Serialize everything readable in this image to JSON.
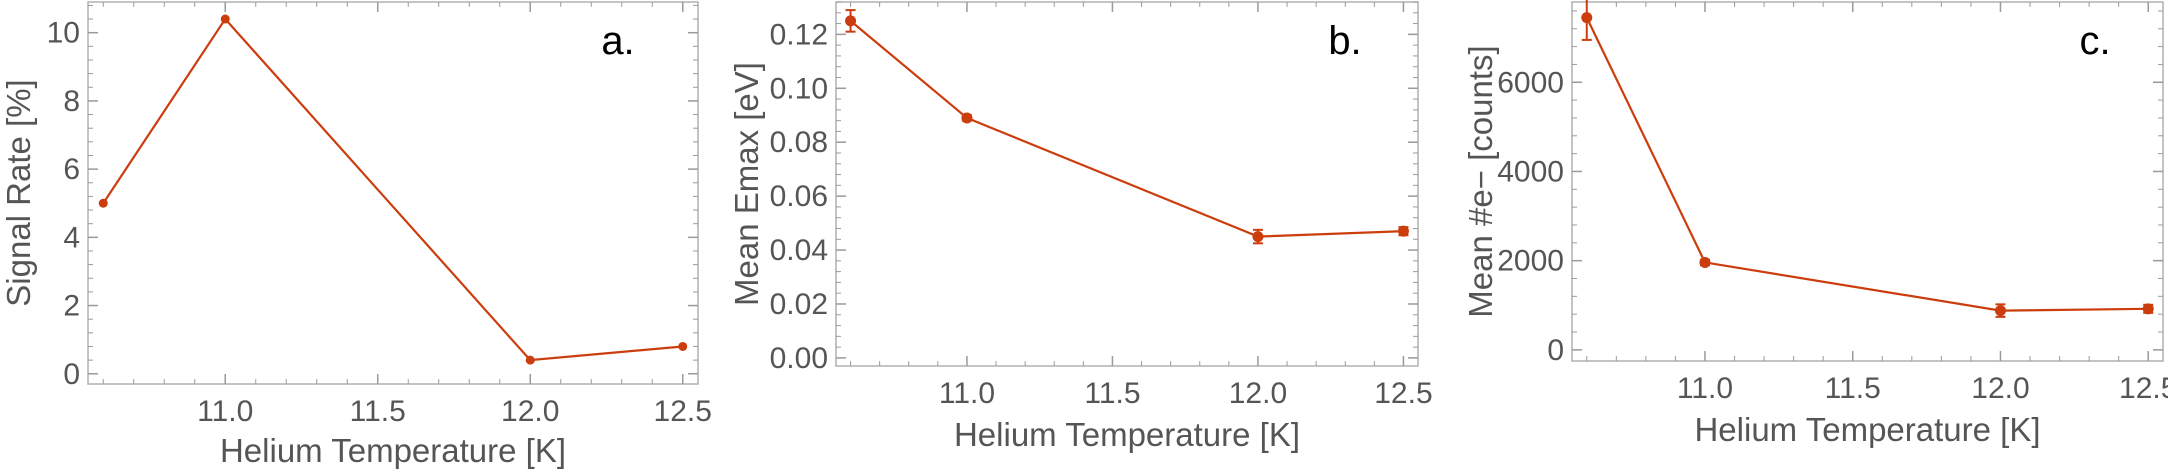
{
  "chart_data": [
    {
      "type": "line",
      "panel_label": "a.",
      "xlabel": "Helium Temperature [K]",
      "ylabel": "Signal Rate [%]",
      "xlim": [
        10.55,
        12.55
      ],
      "ylim": [
        -0.3,
        10.9
      ],
      "xticks": [
        11.0,
        11.5,
        12.0,
        12.5
      ],
      "xtick_labels": [
        "11.0",
        "11.5",
        "12.0",
        "12.5"
      ],
      "yticks": [
        0,
        2,
        4,
        6,
        8,
        10
      ],
      "ytick_labels": [
        "0",
        "2",
        "4",
        "6",
        "8",
        "10"
      ],
      "x": [
        10.6,
        11.0,
        12.0,
        12.5
      ],
      "series": [
        {
          "values": [
            5.0,
            10.4,
            0.4,
            0.8
          ],
          "errors": [
            0,
            0,
            0,
            0
          ]
        }
      ],
      "color": "#cc3d0e"
    },
    {
      "type": "line",
      "panel_label": "b.",
      "xlabel": "Helium Temperature [K]",
      "ylabel": "Mean Emax [eV]",
      "xlim": [
        10.55,
        12.55
      ],
      "ylim": [
        -0.003,
        0.132
      ],
      "xticks": [
        11.0,
        11.5,
        12.0,
        12.5
      ],
      "xtick_labels": [
        "11.0",
        "11.5",
        "12.0",
        "12.5"
      ],
      "yticks": [
        0.0,
        0.02,
        0.04,
        0.06,
        0.08,
        0.1,
        0.12
      ],
      "ytick_labels": [
        "0.00",
        "0.02",
        "0.04",
        "0.06",
        "0.08",
        "0.10",
        "0.12"
      ],
      "x": [
        10.6,
        11.0,
        12.0,
        12.5
      ],
      "series": [
        {
          "values": [
            0.125,
            0.089,
            0.045,
            0.047
          ],
          "errors": [
            0.004,
            0.001,
            0.0025,
            0.0015
          ]
        }
      ],
      "color": "#cc3d0e"
    },
    {
      "type": "line",
      "panel_label": "c.",
      "xlabel": "Helium Temperature [K]",
      "ylabel": "Mean #e− [counts]",
      "xlim": [
        10.55,
        12.55
      ],
      "ylim": [
        -250,
        7800
      ],
      "xticks": [
        11.0,
        11.5,
        12.0,
        12.5
      ],
      "xtick_labels": [
        "11.0",
        "11.5",
        "12.0",
        "12.5"
      ],
      "yticks": [
        0,
        2000,
        4000,
        6000
      ],
      "ytick_labels": [
        "0",
        "2000",
        "4000",
        "6000"
      ],
      "x": [
        10.6,
        11.0,
        12.0,
        12.5
      ],
      "series": [
        {
          "values": [
            7450,
            1960,
            880,
            920
          ],
          "errors": [
            500,
            60,
            140,
            90
          ]
        }
      ],
      "color": "#cc3d0e"
    }
  ]
}
